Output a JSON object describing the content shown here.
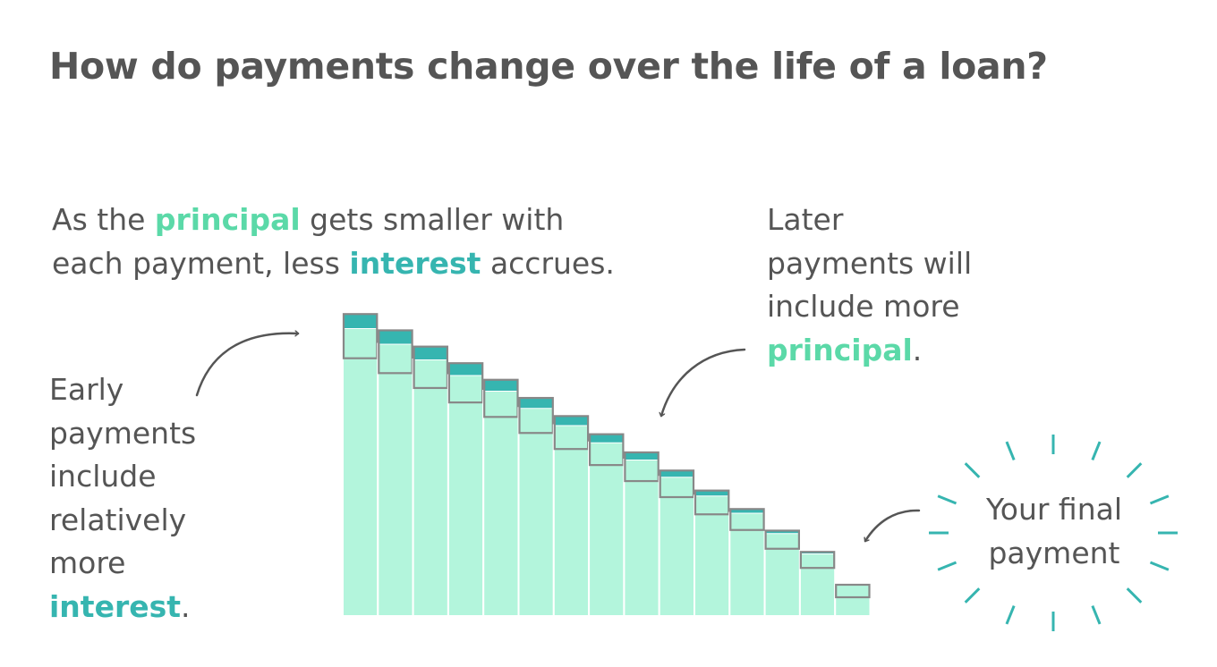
{
  "title": "How do payments change over the life of a loan?",
  "intro": {
    "line1_before": "As the ",
    "line1_highlight": "principal",
    "line1_after": " gets smaller with",
    "line2_before": "each payment, less ",
    "line2_highlight": "interest",
    "line2_after": " accrues."
  },
  "early_note": {
    "lines": [
      "Early",
      "payments",
      "include",
      "relatively",
      "more"
    ],
    "highlight": "interest",
    "end": "."
  },
  "later_note": {
    "lines": [
      "Later",
      "payments will",
      "include more"
    ],
    "highlight": "principal",
    "end": "."
  },
  "final_note": {
    "lines": [
      "Your final",
      "payment"
    ]
  },
  "colors": {
    "text": "#555555",
    "principal": "#b3f5dc",
    "principal_text": "#5bd9a8",
    "interest": "#36b5b0",
    "outline": "#888888",
    "arrow": "#555555",
    "burst": "#36b5b0"
  },
  "payments": [
    {
      "principal": 0.92,
      "interest": 0.045
    },
    {
      "principal": 0.87,
      "interest": 0.043
    },
    {
      "principal": 0.82,
      "interest": 0.041
    },
    {
      "principal": 0.77,
      "interest": 0.038
    },
    {
      "principal": 0.72,
      "interest": 0.035
    },
    {
      "principal": 0.665,
      "interest": 0.032
    },
    {
      "principal": 0.61,
      "interest": 0.029
    },
    {
      "principal": 0.555,
      "interest": 0.026
    },
    {
      "principal": 0.5,
      "interest": 0.023
    },
    {
      "principal": 0.445,
      "interest": 0.02
    },
    {
      "principal": 0.385,
      "interest": 0.016
    },
    {
      "principal": 0.33,
      "interest": 0.012
    },
    {
      "principal": 0.265,
      "interest": 0.008
    },
    {
      "principal": 0.2,
      "interest": 0.005
    },
    {
      "principal": 0.1,
      "interest": 0
    }
  ]
}
